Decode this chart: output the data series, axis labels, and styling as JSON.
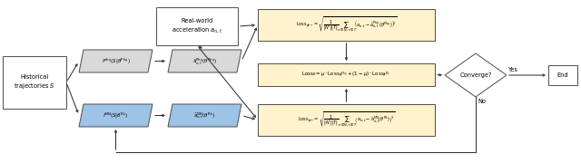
{
  "bg_color": "#ffffff",
  "ec_color": "#555555",
  "arrow_color": "#333333",
  "box_hist_fc": "#ffffff",
  "box_hist_text": "Historical\ntrajectories $S$",
  "box_real_fc": "#ffffff",
  "box_real_text": "Real-world\nacceleration $a_{n,t}$",
  "box_fphy_fc": "#d9d9d9",
  "box_fphy_text": "$f^{\\rm phy}(S|\\theta^{\\rm Phy})$",
  "box_fnn_fc": "#9dc3e6",
  "box_fnn_text": "$f^{\\rm NN}(S|\\theta^{\\rm RL})$",
  "box_aphy_fc": "#d9d9d9",
  "box_aphy_text": "$\\hat{a}_{n,t}^{\\rm Phy}(\\theta^{\\rm Phy})$",
  "box_ann_fc": "#9dc3e6",
  "box_ann_text": "$\\hat{a}_{n,t}^{\\rm NN}(\\theta^{\\rm RL})$",
  "box_lossphy_fc": "#fff2cc",
  "box_lossphy_text": "$\\mathrm{Loss}_{\\phi^{\\mathrm{Phy}}} = \\sqrt{\\dfrac{1}{|N'||T|}\\sum_{n\\in N,\\,t\\in T}\\!\\left(a_{n,t}-\\hat{a}_{n,t}^{\\rm Phy}(\\theta^{\\rm Phy})\\right)^{\\!2}}$",
  "box_losstot_fc": "#fff2cc",
  "box_losstot_text": "$\\mathrm{Loss}_{\\theta}=\\mu\\cdot\\mathrm{Loss}_{\\phi^{\\mathrm{Phy}}}+(1-\\mu)\\cdot\\mathrm{Loss}_{\\phi^{\\mathrm{RL}}}$",
  "box_lossrl_fc": "#fff2cc",
  "box_lossrl_text": "$\\mathrm{Loss}_{\\phi^{\\mathrm{RL}}} = \\sqrt{\\dfrac{1}{|N'||T|}\\sum_{n\\in N,\\,t\\in T}\\!\\left(a_{n,t}-\\hat{a}_{n,t}^{\\rm NN}(\\theta^{\\rm RL})\\right)^{\\!2}}$",
  "diamond_fc": "#ffffff",
  "diamond_text": "Converge?",
  "box_end_fc": "#ffffff",
  "box_end_text": "End",
  "yes_text": "Yes",
  "no_text": "No",
  "lw": 0.75,
  "fs_small": 4.8,
  "fs_tiny": 4.0,
  "fs_med": 5.2
}
